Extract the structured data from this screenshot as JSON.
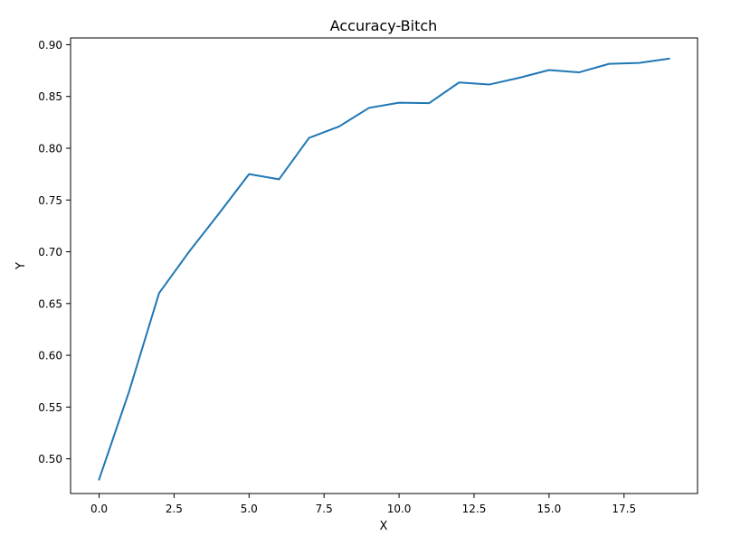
{
  "chart_data": {
    "type": "line",
    "title": "Accuracy-Bitch",
    "xlabel": "X",
    "ylabel": "Y",
    "xlim": [
      -0.95,
      19.95
    ],
    "ylim": [
      0.4665,
      0.9065
    ],
    "xticks": [
      0.0,
      2.5,
      5.0,
      7.5,
      10.0,
      12.5,
      15.0,
      17.5
    ],
    "xtick_labels": [
      "0.0",
      "2.5",
      "5.0",
      "7.5",
      "10.0",
      "12.5",
      "15.0",
      "17.5"
    ],
    "yticks": [
      0.5,
      0.55,
      0.6,
      0.65,
      0.7,
      0.75,
      0.8,
      0.85,
      0.9
    ],
    "ytick_labels": [
      "0.50",
      "0.55",
      "0.60",
      "0.65",
      "0.70",
      "0.75",
      "0.80",
      "0.85",
      "0.90"
    ],
    "grid": false,
    "series": [
      {
        "color": "#1f77b4",
        "x": [
          0,
          1,
          2,
          3,
          4,
          5,
          6,
          7,
          8,
          9,
          10,
          11,
          12,
          13,
          14,
          15,
          16,
          17,
          18,
          19
        ],
        "y": [
          0.48,
          0.565,
          0.66,
          0.7,
          0.737,
          0.775,
          0.77,
          0.81,
          0.821,
          0.839,
          0.844,
          0.8435,
          0.8635,
          0.8615,
          0.868,
          0.8755,
          0.8733,
          0.8815,
          0.8824,
          0.8865
        ]
      }
    ]
  }
}
